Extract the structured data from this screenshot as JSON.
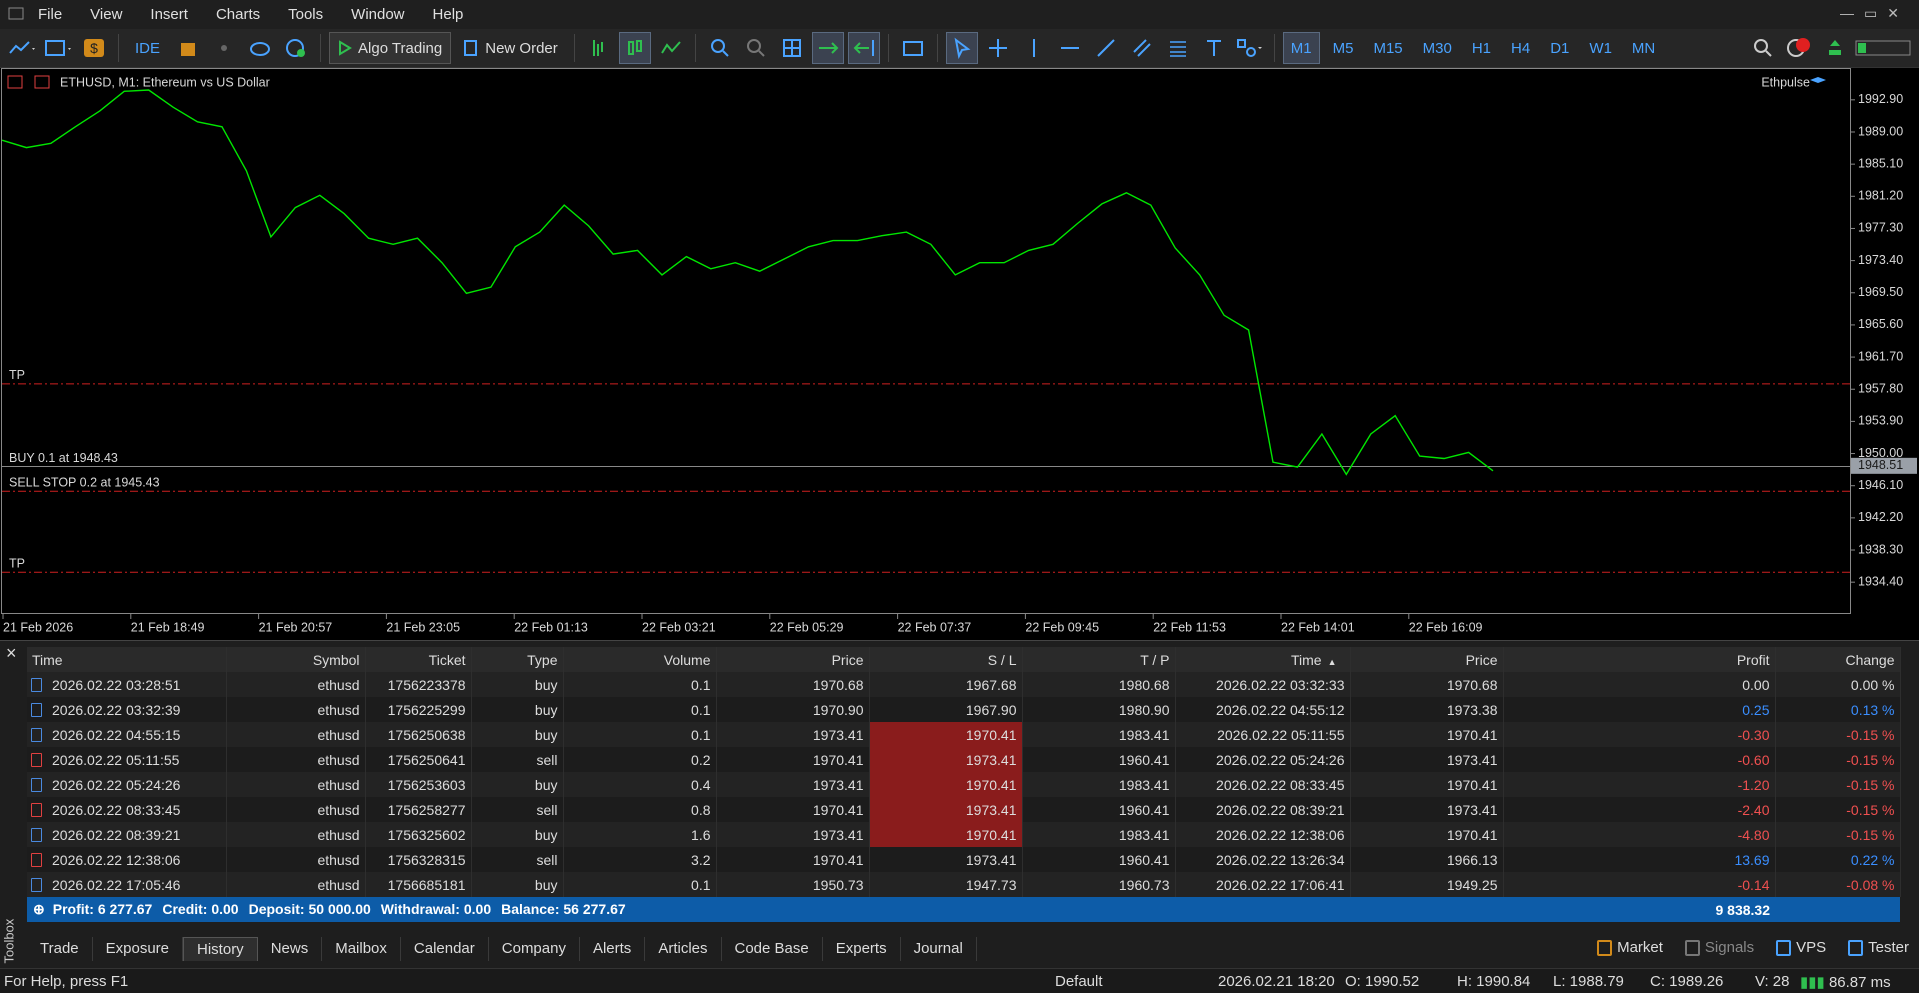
{
  "menu": [
    "File",
    "View",
    "Insert",
    "Charts",
    "Tools",
    "Window",
    "Help"
  ],
  "toolbar": {
    "ide": "IDE",
    "algo_trading": "Algo Trading",
    "new_order": "New Order",
    "timeframes": [
      "M1",
      "M5",
      "M15",
      "M30",
      "H1",
      "H4",
      "D1",
      "W1",
      "MN"
    ],
    "active_timeframe": "M1"
  },
  "chart": {
    "title": "ETHUSD, M1:  Ethereum vs US Dollar",
    "indicator": "Ethpulse",
    "line_color": "#00e600",
    "ylim": [
      1930.54,
      1996.76
    ],
    "yticks": [
      {
        "value": 1992.9,
        "label": "1992.90"
      },
      {
        "value": 1989.0,
        "label": "1989.00"
      },
      {
        "value": 1985.1,
        "label": "1985.10"
      },
      {
        "value": 1981.2,
        "label": "1981.20"
      },
      {
        "value": 1977.3,
        "label": "1977.30"
      },
      {
        "value": 1973.4,
        "label": "1973.40"
      },
      {
        "value": 1969.5,
        "label": "1969.50"
      },
      {
        "value": 1965.6,
        "label": "1965.60"
      },
      {
        "value": 1961.7,
        "label": "1961.70"
      },
      {
        "value": 1957.8,
        "label": "1957.80"
      },
      {
        "value": 1953.9,
        "label": "1953.90"
      },
      {
        "value": 1950.0,
        "label": "1950.00"
      },
      {
        "value": 1946.1,
        "label": "1946.10"
      },
      {
        "value": 1942.2,
        "label": "1942.20"
      },
      {
        "value": 1938.3,
        "label": "1938.30"
      },
      {
        "value": 1934.4,
        "label": "1934.40"
      }
    ],
    "current_price": {
      "value": 1948.51,
      "label": "1948.51"
    },
    "time_labels": [
      "21 Feb 2026",
      "21 Feb 18:49",
      "21 Feb 20:57",
      "21 Feb 23:05",
      "22 Feb 01:13",
      "22 Feb 03:21",
      "22 Feb 05:29",
      "22 Feb 07:37",
      "22 Feb 09:45",
      "22 Feb 11:53",
      "22 Feb 14:01",
      "22 Feb 16:09"
    ],
    "price": [
      1988.0,
      1987.11,
      1987.63,
      1989.63,
      1991.56,
      1993.94,
      1994.09,
      1992.01,
      1990.23,
      1989.63,
      1984.29,
      1976.27,
      1979.83,
      1981.32,
      1979.09,
      1976.12,
      1975.38,
      1976.12,
      1973.15,
      1969.44,
      1970.18,
      1975.08,
      1976.86,
      1980.13,
      1977.61,
      1974.19,
      1974.64,
      1971.67,
      1973.89,
      1972.41,
      1973.15,
      1972.11,
      1973.6,
      1975.08,
      1975.83,
      1975.83,
      1976.42,
      1976.86,
      1975.38,
      1971.67,
      1973.15,
      1973.15,
      1974.64,
      1975.38,
      1977.9,
      1980.28,
      1981.62,
      1980.13,
      1974.93,
      1971.67,
      1966.77,
      1964.99,
      1948.95,
      1948.36,
      1952.37,
      1947.47,
      1952.37,
      1954.59,
      1949.69,
      1949.4,
      1950.14,
      1947.91
    ],
    "levels": [
      {
        "label": "TP",
        "value": 1958.45,
        "style": "stop"
      },
      {
        "label": "BUY 0.1 at 1948.43",
        "value": 1948.43,
        "style": "order"
      },
      {
        "label": "SELL STOP 0.2 at 1945.43",
        "value": 1945.43,
        "style": "stop"
      },
      {
        "label": "TP",
        "value": 1935.6,
        "style": "stop"
      }
    ]
  },
  "history": {
    "columns": [
      "Time",
      "Symbol",
      "Ticket",
      "Type",
      "Volume",
      "Price",
      "S / L",
      "T / P",
      "Time",
      "Price",
      "Profit",
      "Change"
    ],
    "rows": [
      [
        "2026.02.22 03:28:51",
        "ethusd",
        "1756223378",
        "buy",
        "0.1",
        "1970.68",
        "1967.68",
        "1980.68",
        "2026.02.22 03:32:33",
        "1970.68",
        "0.00",
        "0.00 %"
      ],
      [
        "2026.02.22 03:32:39",
        "ethusd",
        "1756225299",
        "buy",
        "0.1",
        "1970.90",
        "1967.90",
        "1980.90",
        "2026.02.22 04:55:12",
        "1973.38",
        "0.25",
        "0.13 %"
      ],
      [
        "2026.02.22 04:55:15",
        "ethusd",
        "1756250638",
        "buy",
        "0.1",
        "1973.41",
        "1970.41",
        "1983.41",
        "2026.02.22 05:11:55",
        "1970.41",
        "-0.30",
        "-0.15 %"
      ],
      [
        "2026.02.22 05:11:55",
        "ethusd",
        "1756250641",
        "sell",
        "0.2",
        "1970.41",
        "1973.41",
        "1960.41",
        "2026.02.22 05:24:26",
        "1973.41",
        "-0.60",
        "-0.15 %"
      ],
      [
        "2026.02.22 05:24:26",
        "ethusd",
        "1756253603",
        "buy",
        "0.4",
        "1973.41",
        "1970.41",
        "1983.41",
        "2026.02.22 08:33:45",
        "1970.41",
        "-1.20",
        "-0.15 %"
      ],
      [
        "2026.02.22 08:33:45",
        "ethusd",
        "1756258277",
        "sell",
        "0.8",
        "1970.41",
        "1973.41",
        "1960.41",
        "2026.02.22 08:39:21",
        "1973.41",
        "-2.40",
        "-0.15 %"
      ],
      [
        "2026.02.22 08:39:21",
        "ethusd",
        "1756325602",
        "buy",
        "1.6",
        "1973.41",
        "1970.41",
        "1983.41",
        "2026.02.22 12:38:06",
        "1970.41",
        "-4.80",
        "-0.15 %"
      ],
      [
        "2026.02.22 12:38:06",
        "ethusd",
        "1756328315",
        "sell",
        "3.2",
        "1970.41",
        "1973.41",
        "1960.41",
        "2026.02.22 13:26:34",
        "1966.13",
        "13.69",
        "0.22 %"
      ],
      [
        "2026.02.22 17:05:46",
        "ethusd",
        "1756685181",
        "buy",
        "0.1",
        "1950.73",
        "1947.73",
        "1960.73",
        "2026.02.22 17:06:41",
        "1949.25",
        "-0.14",
        "-0.08 %"
      ]
    ],
    "summary": [
      "Profit: 6 277.67",
      "Credit: 0.00",
      "Deposit: 50 000.00",
      "Withdrawal: 0.00",
      "Balance: 56 277.67"
    ],
    "total": "9 838.32"
  },
  "toolbox": {
    "label": "Toolbox",
    "tabs": [
      "Trade",
      "Exposure",
      "History",
      "News",
      "Mailbox",
      "Calendar",
      "Company",
      "Alerts",
      "Articles",
      "Code Base",
      "Experts",
      "Journal"
    ],
    "active_tab": "History",
    "services": [
      "Market",
      "Signals",
      "VPS",
      "Tester"
    ]
  },
  "status": {
    "help": "For Help, press F1",
    "profile": "Default",
    "time": "2026.02.21 18:20",
    "open": "O: 1990.52",
    "high": "H: 1990.84",
    "low": "L: 1988.79",
    "close": "C: 1989.26",
    "volume": "V: 28",
    "ping": "86.87 ms"
  }
}
